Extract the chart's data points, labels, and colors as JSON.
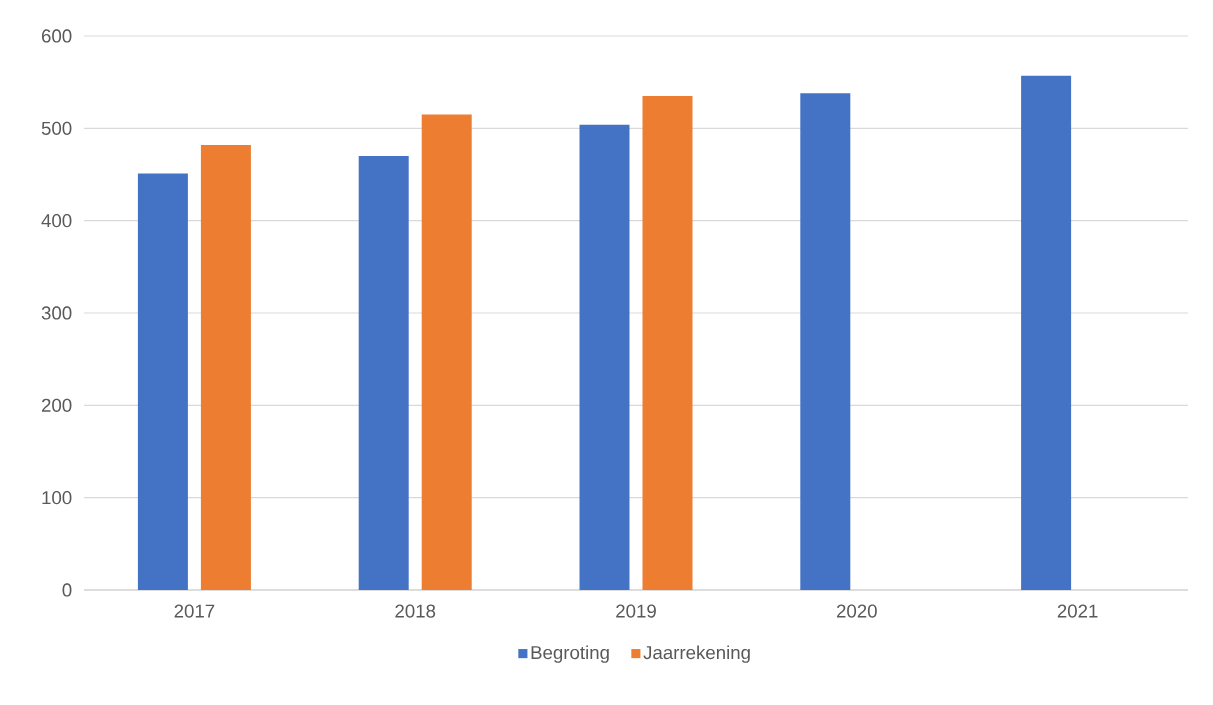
{
  "chart_data": {
    "type": "bar",
    "categories": [
      "2017",
      "2018",
      "2019",
      "2020",
      "2021"
    ],
    "series": [
      {
        "name": "Begroting",
        "color": "#4472c4",
        "values": [
          451,
          470,
          504,
          538,
          557
        ]
      },
      {
        "name": "Jaarrekening",
        "color": "#ed7d31",
        "values": [
          482,
          515,
          535,
          null,
          null
        ]
      }
    ],
    "ylim": [
      0,
      600
    ],
    "yticks": [
      0,
      100,
      200,
      300,
      400,
      500,
      600
    ],
    "grid": "y",
    "legend": "bottom"
  }
}
